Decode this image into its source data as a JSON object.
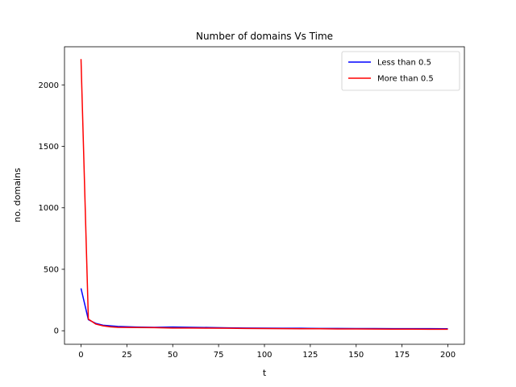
{
  "chart_data": {
    "type": "line",
    "title": "Number of domains Vs Time",
    "xlabel": "t",
    "ylabel": "no. domains",
    "xlim": [
      -9,
      209
    ],
    "ylim": [
      -110,
      2310
    ],
    "xticks": [
      0,
      25,
      50,
      75,
      100,
      125,
      150,
      175,
      200
    ],
    "yticks": [
      0,
      500,
      1000,
      1500,
      2000
    ],
    "grid": false,
    "legend_position": "top-right",
    "x": [
      0,
      4,
      8,
      12,
      16,
      20,
      30,
      40,
      50,
      60,
      70,
      80,
      90,
      100,
      110,
      120,
      130,
      140,
      150,
      160,
      170,
      180,
      190,
      200
    ],
    "series": [
      {
        "name": "Less than 0.5",
        "color": "#0000ff",
        "values": [
          345,
          90,
          60,
          45,
          40,
          35,
          30,
          28,
          30,
          28,
          26,
          24,
          22,
          21,
          20,
          20,
          19,
          19,
          18,
          18,
          17,
          17,
          17,
          16
        ]
      },
      {
        "name": "More than 0.5",
        "color": "#ff0000",
        "values": [
          2210,
          95,
          55,
          40,
          32,
          28,
          26,
          25,
          22,
          22,
          21,
          20,
          19,
          18,
          17,
          16,
          16,
          15,
          15,
          14,
          13,
          13,
          12,
          12
        ]
      }
    ]
  }
}
